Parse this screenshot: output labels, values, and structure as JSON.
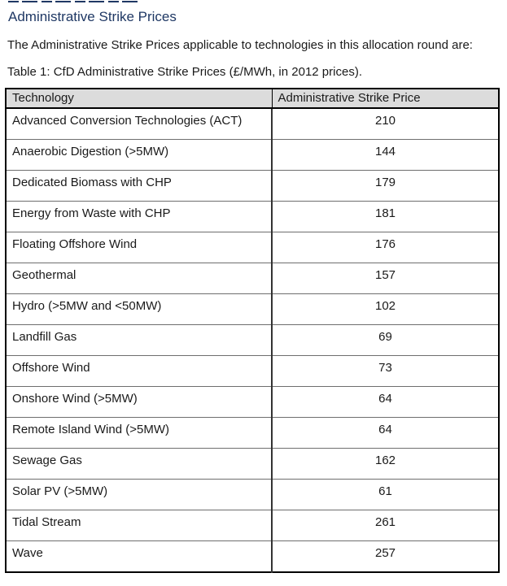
{
  "page": {
    "title": "Administrative Strike Prices",
    "intro": "The Administrative Strike Prices applicable to technologies in this allocation round are:",
    "table_caption": "Table 1: CfD Administrative Strike Prices (£/MWh, in 2012 prices)."
  },
  "colors": {
    "heading_blue": "#1f3864",
    "header_row_bg": "#dcdcdc",
    "body_text": "#1a1a1a",
    "table_border": "#000000"
  },
  "table": {
    "columns": [
      "Technology",
      "Administrative Strike Price"
    ],
    "rows": [
      {
        "technology": "Advanced Conversion Technologies (ACT)",
        "price": "210"
      },
      {
        "technology": "Anaerobic Digestion (>5MW)",
        "price": "144"
      },
      {
        "technology": "Dedicated Biomass with CHP",
        "price": "179"
      },
      {
        "technology": "Energy from Waste with CHP",
        "price": "181"
      },
      {
        "technology": "Floating Offshore Wind",
        "price": "176"
      },
      {
        "technology": "Geothermal",
        "price": "157"
      },
      {
        "technology": "Hydro (>5MW and <50MW)",
        "price": "102"
      },
      {
        "technology": "Landfill Gas",
        "price": "69"
      },
      {
        "technology": "Offshore Wind",
        "price": "73"
      },
      {
        "technology": "Onshore Wind (>5MW)",
        "price": "64"
      },
      {
        "technology": "Remote Island Wind (>5MW)",
        "price": "64"
      },
      {
        "technology": "Sewage Gas",
        "price": "162"
      },
      {
        "technology": "Solar PV (>5MW)",
        "price": "61"
      },
      {
        "technology": "Tidal Stream",
        "price": "261"
      },
      {
        "technology": "Wave",
        "price": "257"
      }
    ]
  }
}
